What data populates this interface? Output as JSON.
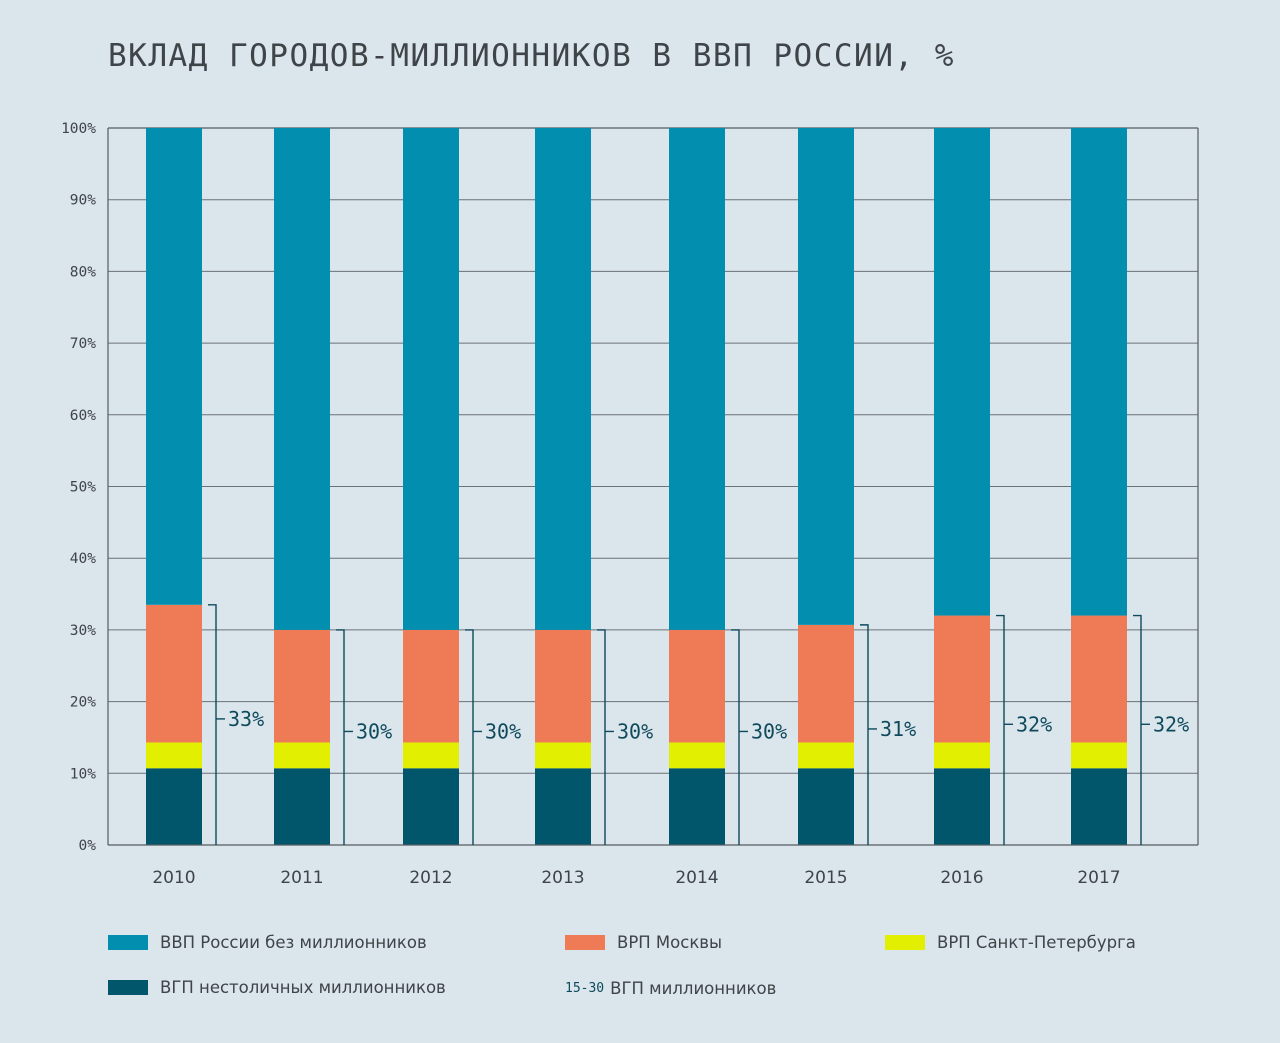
{
  "chart_data": {
    "type": "bar",
    "stacked": true,
    "title": "ВКЛАД ГОРОДОВ-МИЛЛИОННИКОВ В ВВП РОССИИ, %",
    "categories": [
      "2010",
      "2011",
      "2012",
      "2013",
      "2014",
      "2015",
      "2016",
      "2017"
    ],
    "ylim": [
      0,
      100
    ],
    "yticks": [
      "0%",
      "10%",
      "20%",
      "30%",
      "40%",
      "50%",
      "60%",
      "70%",
      "80%",
      "90%",
      "100%"
    ],
    "grid": true,
    "series": [
      {
        "name": "ВГП нестоличных миллионников",
        "color": "#02566c",
        "values": [
          10.7,
          10.7,
          10.7,
          10.7,
          10.7,
          10.7,
          10.7,
          10.7
        ]
      },
      {
        "name": "ВРП Санкт-Петербурга",
        "color": "#e2ef00",
        "values": [
          3.6,
          3.6,
          3.6,
          3.6,
          3.6,
          3.6,
          3.6,
          3.6
        ]
      },
      {
        "name": "ВРП Москвы",
        "color": "#ef7b56",
        "values": [
          19.2,
          15.7,
          15.7,
          15.7,
          15.7,
          16.4,
          17.7,
          17.7
        ]
      },
      {
        "name": "ВВП России без миллионников",
        "color": "#028faf",
        "values": [
          66.5,
          70.0,
          70.0,
          70.0,
          70.0,
          69.3,
          68.0,
          68.0
        ]
      }
    ],
    "bracket_labels": [
      "33%",
      "30%",
      "30%",
      "30%",
      "30%",
      "31%",
      "32%",
      "32%"
    ],
    "bracket_totals": [
      33.5,
      30.0,
      30.0,
      30.0,
      30.0,
      30.7,
      32.0,
      32.0
    ]
  },
  "legend": {
    "items": [
      {
        "label": "ВВП России без миллионников",
        "color": "#028faf"
      },
      {
        "label": "ВРП Москвы",
        "color": "#ef7b56"
      },
      {
        "label": "ВРП Санкт-Петербурга",
        "color": "#e2ef00"
      },
      {
        "label": "ВГП нестоличных миллионников",
        "color": "#02566c"
      }
    ],
    "range_tag": "15-30",
    "range_label": "ВГП миллионников"
  },
  "colors": {
    "background": "#dbe5ec",
    "text": "#3e4447",
    "axis": "#555c60",
    "grid": "#6b7276",
    "bracket": "#0e4a5c"
  }
}
